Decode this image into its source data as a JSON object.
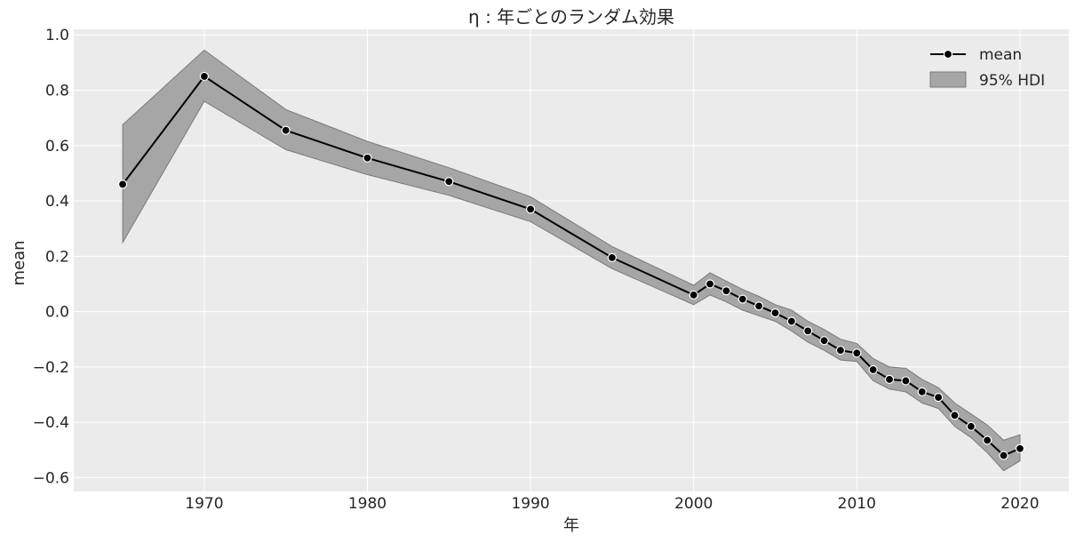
{
  "chart_data": {
    "type": "line",
    "title": "η : 年ごとのランダム効果",
    "xlabel": "年",
    "ylabel": "mean",
    "xlim": [
      1962,
      2023
    ],
    "ylim": [
      -0.65,
      1.02
    ],
    "xticks": [
      1970,
      1980,
      1990,
      2000,
      2010,
      2020
    ],
    "yticks": [
      1.0,
      0.8,
      0.6,
      0.4,
      0.2,
      0.0,
      -0.2,
      -0.4,
      -0.6
    ],
    "ytick_labels": [
      "1.0",
      "0.8",
      "0.6",
      "0.4",
      "0.2",
      "0.0",
      "−0.2",
      "−0.4",
      "−0.6"
    ],
    "grid": true,
    "legend_position": "top-right",
    "legend": [
      "mean",
      "95% HDI"
    ],
    "series": [
      {
        "name": "mean",
        "x": [
          1965,
          1970,
          1975,
          1980,
          1985,
          1990,
          1995,
          2000,
          2001,
          2002,
          2003,
          2004,
          2005,
          2006,
          2007,
          2008,
          2009,
          2010,
          2011,
          2012,
          2013,
          2014,
          2015,
          2016,
          2017,
          2018,
          2019,
          2020
        ],
        "y": [
          0.46,
          0.85,
          0.655,
          0.555,
          0.47,
          0.37,
          0.195,
          0.06,
          0.1,
          0.075,
          0.045,
          0.02,
          -0.005,
          -0.035,
          -0.07,
          -0.105,
          -0.14,
          -0.15,
          -0.21,
          -0.245,
          -0.25,
          -0.29,
          -0.31,
          -0.375,
          -0.415,
          -0.465,
          -0.52,
          -0.495
        ]
      }
    ],
    "band": {
      "name": "95% HDI",
      "lower": [
        0.25,
        0.76,
        0.585,
        0.495,
        0.42,
        0.325,
        0.155,
        0.025,
        0.06,
        0.035,
        0.005,
        -0.015,
        -0.035,
        -0.07,
        -0.11,
        -0.14,
        -0.175,
        -0.18,
        -0.25,
        -0.28,
        -0.29,
        -0.33,
        -0.35,
        -0.415,
        -0.455,
        -0.51,
        -0.575,
        -0.54
      ],
      "upper": [
        0.675,
        0.945,
        0.73,
        0.615,
        0.52,
        0.415,
        0.235,
        0.095,
        0.14,
        0.11,
        0.08,
        0.055,
        0.025,
        0.005,
        -0.035,
        -0.065,
        -0.1,
        -0.115,
        -0.17,
        -0.2,
        -0.205,
        -0.245,
        -0.275,
        -0.33,
        -0.37,
        -0.41,
        -0.465,
        -0.445
      ]
    },
    "colors": {
      "background": "#ebebeb",
      "grid": "#ffffff",
      "line": "#000000",
      "marker_edge": "#ffffff",
      "band_fill": "#a6a6a6",
      "band_edge": "#7a7a7a"
    }
  }
}
